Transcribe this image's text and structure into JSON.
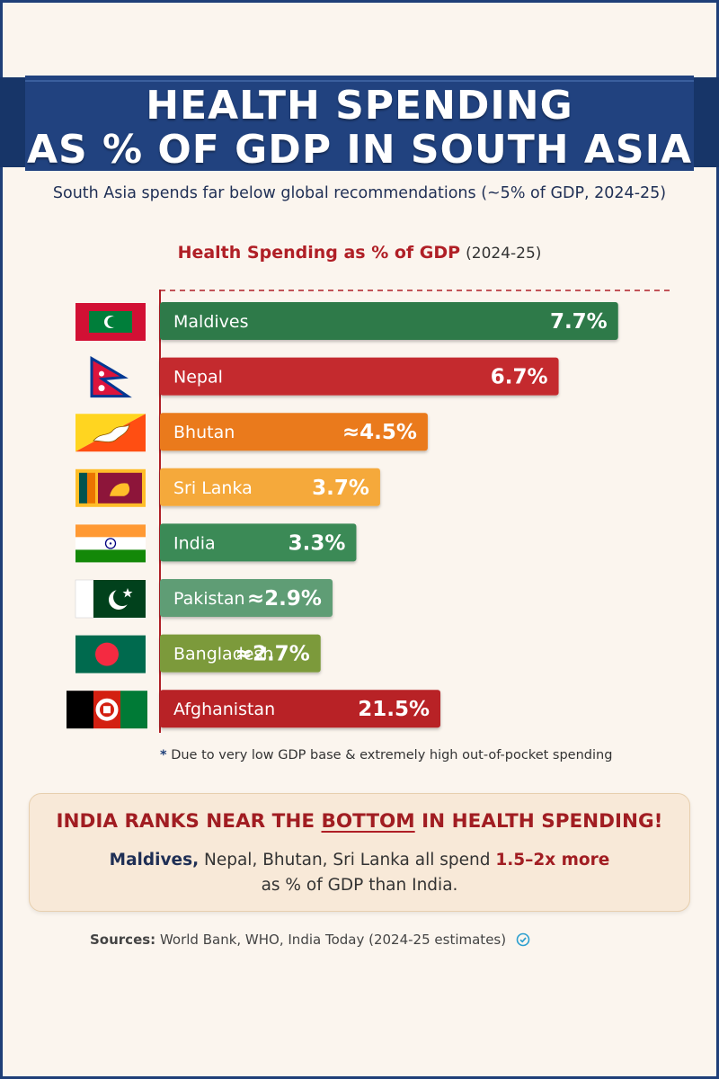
{
  "header": {
    "title_line1": "HEALTH SPENDING",
    "title_line2": "AS % OF GDP IN SOUTH ASIA",
    "subtitle": "South Asia spends far below global recommendations (~5% of GDP, 2024-25)"
  },
  "chart_data": {
    "type": "bar",
    "orientation": "horizontal",
    "title": "Health Spending as % of GDP",
    "title_year": "(2024-25)",
    "categories": [
      "Maldives",
      "Nepal",
      "Bhutan",
      "Sri Lanka",
      "India",
      "Pakistan",
      "Bangladesh",
      "Afghanistan"
    ],
    "values": [
      7.7,
      6.7,
      4.5,
      3.7,
      3.3,
      2.9,
      2.7,
      21.5
    ],
    "value_labels": [
      "7.7%",
      "6.7%",
      "≈4.5%",
      "3.7%",
      "3.3%",
      "≈2.9%",
      "≈2.7%",
      "21.5%"
    ],
    "bar_colors": [
      "#2f7a48",
      "#c42a2d",
      "#ea7a1c",
      "#f5a93a",
      "#3a8a56",
      "#5e9d74",
      "#7c9a3a",
      "#b82126"
    ],
    "flags": [
      "maldives-flag",
      "nepal-flag",
      "bhutan-flag",
      "sri-lanka-flag",
      "india-flag",
      "pakistan-flag",
      "bangladesh-flag",
      "afghanistan-flag"
    ],
    "grid": false
  },
  "footnote": {
    "star": "*",
    "text": "Due to very low GDP base & extremely high out-of-pocket spending"
  },
  "callout": {
    "head_pre": "INDIA RANKS NEAR THE ",
    "head_highlight": "BOTTOM",
    "head_post": " IN HEALTH SPENDING!",
    "body_names": "Maldives,",
    "body_mid": " Nepal, Bhutan, Sri Lanka all spend ",
    "body_emph": "1.5–2x more",
    "body_line2": "as % of GDP than India."
  },
  "sources": {
    "label": "Sources:",
    "text": "World Bank, WHO, India Today (2024-25 estimates)"
  },
  "colors": {
    "banner": "#21427f",
    "accent_red": "#b01f26",
    "background": "#fbf5ee"
  }
}
